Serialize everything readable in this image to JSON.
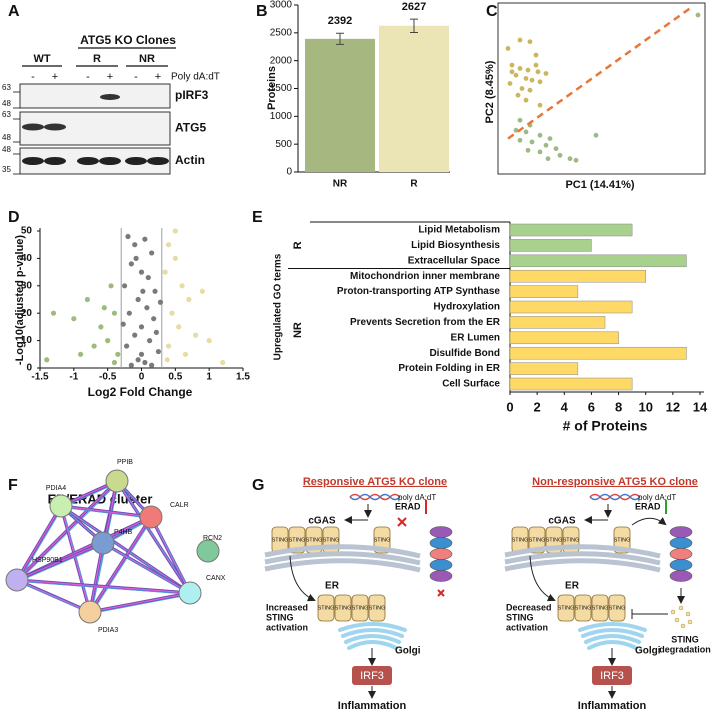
{
  "panel_letters": [
    "A",
    "B",
    "C",
    "D",
    "E",
    "F",
    "G"
  ],
  "blot": {
    "clones_label": "ATG5 KO Clones",
    "groups": [
      "WT",
      "R",
      "NR"
    ],
    "treatment_signs": [
      "-",
      "+",
      "-",
      "+",
      "-",
      "+"
    ],
    "treatment": "Poly dA:dT",
    "markers": [
      "pIRF3",
      "ATG5",
      "Actin"
    ],
    "mw": [
      "63",
      "48",
      "63",
      "48",
      "48",
      "35"
    ]
  },
  "chart_data": [
    {
      "type": "bar",
      "ylabel": "Proteins",
      "categories": [
        "NR",
        "R"
      ],
      "values": [
        2392,
        2627
      ],
      "errors": [
        100,
        120
      ],
      "colors": [
        "#a6b880",
        "#ebe4b4"
      ],
      "ylim": [
        0,
        3000
      ],
      "yticks": [
        0,
        500,
        1000,
        1500,
        2000,
        2500,
        3000
      ]
    },
    {
      "type": "scatter",
      "xlabel": "PC1 (14.41%)",
      "ylabel": "PC2 (8.45%)",
      "xlim": [
        0,
        100
      ],
      "ylim": [
        0,
        100
      ],
      "series": [
        {
          "color": "#cbb65c",
          "x": [
            10,
            15,
            4,
            18,
            6,
            10,
            14,
            19,
            23,
            8,
            13,
            16,
            20,
            5,
            11,
            15,
            9,
            13,
            20,
            6,
            18
          ],
          "y": [
            79,
            78,
            74,
            70,
            64,
            62,
            61,
            60,
            59,
            58,
            56,
            55,
            54,
            53,
            50,
            49,
            46,
            43,
            40,
            60,
            64
          ]
        },
        {
          "color": "#9cbb84",
          "x": [
            10,
            15,
            8,
            13,
            20,
            25,
            10,
            16,
            23,
            28,
            14,
            20,
            30,
            38,
            35,
            48,
            24,
            99
          ],
          "y": [
            31,
            28,
            25,
            24,
            22,
            20,
            19,
            18,
            16,
            14,
            13,
            12,
            10,
            7,
            8,
            22,
            8,
            94
          ]
        }
      ],
      "divider": {
        "color": "#e8763a",
        "x": [
          4,
          95
        ],
        "y": [
          20,
          98
        ]
      }
    },
    {
      "type": "scatter",
      "xlabel": "Log2 Fold Change",
      "ylabel": "-Log10(adjusted p-value)",
      "xlim": [
        -1.5,
        1.5
      ],
      "ylim": [
        0,
        50
      ],
      "xticks": [
        -1.5,
        -1,
        -0.5,
        0,
        0.5,
        1,
        1.5
      ],
      "yticks": [
        0,
        10,
        20,
        30,
        40,
        50
      ],
      "thresholds": [
        -0.3,
        0.3
      ],
      "series": [
        {
          "color": "#7a7a7a",
          "x": [
            -0.2,
            -0.1,
            0.05,
            0.15,
            -0.15,
            0,
            0.1,
            -0.25,
            0.2,
            -0.05,
            0.08,
            -0.18,
            0.18,
            0,
            -0.1,
            0.12,
            -0.22,
            0.25,
            0,
            -0.05,
            0.05,
            0.15,
            -0.15,
            0.22,
            -0.27,
            0.28,
            -0.08,
            0.02
          ],
          "y": [
            48,
            45,
            47,
            42,
            38,
            35,
            33,
            30,
            28,
            25,
            22,
            20,
            18,
            15,
            12,
            10,
            8,
            6,
            5,
            3,
            2,
            1,
            1,
            13,
            16,
            24,
            40,
            28
          ]
        },
        {
          "color": "#9cbb7c",
          "x": [
            -0.4,
            -0.5,
            -0.6,
            -0.35,
            -0.8,
            -1.0,
            -0.45,
            -1.3,
            -0.7,
            -0.9,
            -0.55,
            -0.4,
            -1.4
          ],
          "y": [
            20,
            10,
            15,
            5,
            25,
            18,
            30,
            20,
            8,
            5,
            22,
            2,
            3
          ]
        },
        {
          "color": "#e6dca4",
          "x": [
            0.4,
            0.5,
            0.35,
            0.6,
            0.7,
            0.45,
            0.55,
            0.8,
            0.4,
            0.65,
            1.0,
            0.9,
            0.38,
            1.2,
            0.5
          ],
          "y": [
            45,
            40,
            35,
            30,
            25,
            20,
            15,
            12,
            8,
            5,
            10,
            28,
            3,
            2,
            50
          ]
        }
      ]
    },
    {
      "type": "barh",
      "ylabel": "Upregulated GO terms",
      "xlabel": "# of Proteins",
      "xlim": [
        0,
        14
      ],
      "xticks": [
        0,
        2,
        4,
        6,
        8,
        10,
        12,
        14
      ],
      "groups": [
        {
          "label": "R",
          "color": "#a9d18e",
          "categories": [
            "Lipid Metabolism",
            "Lipid Biosynthesis",
            "Extracellular Space"
          ],
          "values": [
            9,
            6,
            13
          ]
        },
        {
          "label": "NR",
          "color": "#ffd966",
          "categories": [
            "Mitochondrion inner membrane",
            "Proton-transporting ATP Synthase",
            "Hydroxylation",
            "Prevents Secretion from the ER",
            "ER Lumen",
            "Disulfide Bond",
            "Protein Folding in ER",
            "Cell Surface"
          ],
          "values": [
            10,
            5,
            9,
            7,
            8,
            13,
            5,
            9
          ]
        }
      ]
    }
  ],
  "network": {
    "title": "ER/ERAD cluster",
    "nodes": [
      {
        "label": "PPIB",
        "color": "#c9d98e"
      },
      {
        "label": "PDIA4",
        "color": "#c8eeb0"
      },
      {
        "label": "CALR",
        "color": "#f07a78"
      },
      {
        "label": "RCN2",
        "color": "#7fc99a"
      },
      {
        "label": "P4HB",
        "color": "#7b9bd3"
      },
      {
        "label": "HSP90B1",
        "color": "#c0b0ef"
      },
      {
        "label": "CANX",
        "color": "#aef0f0"
      },
      {
        "label": "PDIA3",
        "color": "#f5cf9e"
      }
    ]
  },
  "model": {
    "left": {
      "title": "Responsive ATG5 KO clone",
      "ligand": "poly dA:dT",
      "sensor": "cGAS",
      "sting": "STING",
      "erad": "ERAD",
      "er": "ER",
      "activation": [
        "Increased",
        "STING",
        "activation"
      ],
      "golgi": "Golgi",
      "irf3": "IRF3",
      "outcome": "Inflammation"
    },
    "right": {
      "title": "Non-responsive ATG5 KO clone",
      "ligand": "poly dA:dT",
      "sensor": "cGAS",
      "sting": "STING",
      "erad": "ERAD",
      "er": "ER",
      "activation": [
        "Decreased",
        "STING",
        "activation"
      ],
      "golgi": "Golgi",
      "irf3": "IRF3",
      "outcome": "Inflammation",
      "degradation": [
        "STING",
        "degradation"
      ]
    }
  }
}
